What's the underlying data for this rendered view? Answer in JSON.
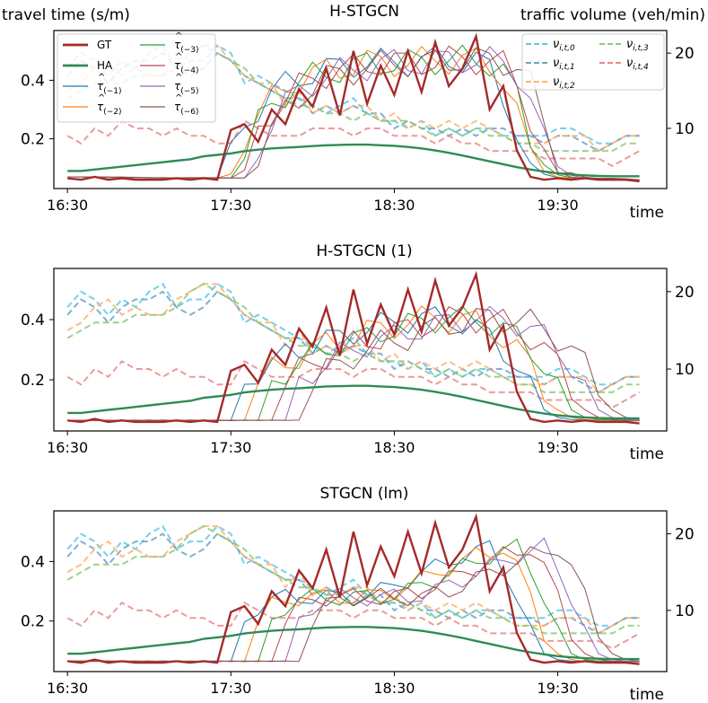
{
  "figure": {
    "left_axis_label": "travel time (s/m)",
    "right_axis_label": "traffic volume (veh/min)",
    "x_axis_label": "time"
  },
  "legend": {
    "travel": [
      {
        "key": "GT",
        "label": "GT",
        "sub": "",
        "hat": false,
        "color": "#a52a2a",
        "width": 2.4
      },
      {
        "key": "HA",
        "label": "HA",
        "sub": "",
        "hat": false,
        "color": "#2e8b57",
        "width": 2.4
      },
      {
        "key": "p1",
        "label": "τ",
        "sub": "(−1)",
        "hat": true,
        "color": "#1f77b4",
        "width": 1
      },
      {
        "key": "p2",
        "label": "τ",
        "sub": "(−2)",
        "hat": true,
        "color": "#ff7f0e",
        "width": 1
      },
      {
        "key": "p3",
        "label": "τ",
        "sub": "(−3)",
        "hat": true,
        "color": "#2ca02c",
        "width": 1
      },
      {
        "key": "p4",
        "label": "τ",
        "sub": "(−4)",
        "hat": true,
        "color": "#b5484d",
        "width": 1
      },
      {
        "key": "p5",
        "label": "τ",
        "sub": "(−5)",
        "hat": true,
        "color": "#9467bd",
        "width": 1
      },
      {
        "key": "p6",
        "label": "τ",
        "sub": "(−6)",
        "hat": true,
        "color": "#8c564b",
        "width": 1
      }
    ],
    "volume": [
      {
        "key": "v0",
        "label": "ν",
        "sub": "i,t,0",
        "color": "#5bc8e8"
      },
      {
        "key": "v1",
        "label": "ν",
        "sub": "i,t,1",
        "color": "#6aa3c8"
      },
      {
        "key": "v2",
        "label": "ν",
        "sub": "i,t,2",
        "color": "#ffb36b"
      },
      {
        "key": "v3",
        "label": "ν",
        "sub": "i,t,3",
        "color": "#8cc97a"
      },
      {
        "key": "v4",
        "label": "ν",
        "sub": "i,t,4",
        "color": "#e88a8a"
      }
    ]
  },
  "chart_data": [
    {
      "type": "line",
      "title": "H-STGCN",
      "xlabel": "time",
      "ylabel_left": "travel time (s/m)",
      "ylabel_right": "traffic volume (veh/min)",
      "x_ticks": [
        "16:30",
        "17:30",
        "18:30",
        "19:30"
      ],
      "x_tick_index": [
        0,
        12,
        24,
        36
      ],
      "xlim": [
        -1,
        44
      ],
      "ylim_left": [
        0.03,
        0.57
      ],
      "y_ticks_left": [
        0.2,
        0.4
      ],
      "ylim_right": [
        2,
        23
      ],
      "y_ticks_right": [
        10,
        20
      ],
      "gt": [
        0.065,
        0.06,
        0.07,
        0.06,
        0.065,
        0.06,
        0.06,
        0.06,
        0.065,
        0.06,
        0.065,
        0.06,
        0.23,
        0.25,
        0.19,
        0.3,
        0.25,
        0.37,
        0.31,
        0.44,
        0.28,
        0.5,
        0.32,
        0.45,
        0.35,
        0.5,
        0.36,
        0.53,
        0.38,
        0.44,
        0.55,
        0.3,
        0.38,
        0.16,
        0.07,
        0.06,
        0.065,
        0.06,
        0.065,
        0.06,
        0.06,
        0.06,
        0.055
      ],
      "ha": [
        0.09,
        0.09,
        0.095,
        0.1,
        0.105,
        0.11,
        0.115,
        0.12,
        0.125,
        0.13,
        0.14,
        0.145,
        0.15,
        0.158,
        0.163,
        0.167,
        0.17,
        0.172,
        0.175,
        0.178,
        0.179,
        0.18,
        0.18,
        0.178,
        0.176,
        0.172,
        0.167,
        0.16,
        0.152,
        0.143,
        0.133,
        0.123,
        0.113,
        0.103,
        0.095,
        0.088,
        0.082,
        0.078,
        0.075,
        0.073,
        0.072,
        0.072,
        0.072
      ],
      "pred": {
        "base": [
          0.07,
          0.068,
          0.07,
          0.066,
          0.068,
          0.066,
          0.066,
          0.066,
          0.068,
          0.066,
          0.066,
          0.066,
          0.2,
          0.28,
          0.33,
          0.37,
          0.4,
          0.42,
          0.43,
          0.44,
          0.45,
          0.46,
          0.46,
          0.46,
          0.46,
          0.465,
          0.47,
          0.47,
          0.47,
          0.465,
          0.46,
          0.42,
          0.3,
          0.15,
          0.09,
          0.07,
          0.065,
          0.065,
          0.065,
          0.06,
          0.06,
          0.06,
          0.06
        ],
        "shift": 0.45,
        "amp": 0.05
      },
      "volume": [
        [
          18,
          20,
          19,
          17,
          19,
          18,
          20,
          21,
          18,
          19,
          19,
          21,
          20,
          16,
          17,
          16,
          15,
          14,
          13,
          12,
          13,
          14,
          12,
          11,
          11,
          10,
          11,
          9,
          10,
          9,
          10,
          10,
          9,
          9,
          9,
          9,
          10,
          10,
          9,
          8,
          8,
          9,
          9
        ],
        [
          17,
          19,
          18,
          16,
          18,
          19,
          19,
          20,
          18,
          17,
          18,
          20,
          19,
          17,
          16,
          15,
          14,
          14,
          12,
          13,
          12,
          13,
          12,
          12,
          10,
          11,
          10,
          10,
          9,
          10,
          9,
          10,
          10,
          9,
          9,
          8,
          9,
          9,
          8,
          7,
          8,
          9,
          9
        ],
        [
          15,
          16,
          18,
          19,
          17,
          18,
          17,
          17,
          19,
          20,
          21,
          21,
          19,
          17,
          16,
          16,
          13,
          15,
          12,
          13,
          12,
          13,
          13,
          11,
          12,
          10,
          11,
          10,
          11,
          10,
          11,
          10,
          9,
          8,
          8,
          8,
          9,
          9,
          9,
          7,
          8,
          9,
          9
        ],
        [
          14,
          15,
          16,
          16,
          16,
          17,
          17,
          17,
          18,
          20,
          21,
          20,
          19,
          18,
          16,
          15,
          14,
          13,
          13,
          12,
          12,
          11,
          12,
          11,
          11,
          11,
          10,
          9,
          10,
          9,
          10,
          9,
          9,
          8,
          8,
          7,
          7,
          7,
          7,
          7,
          7,
          8,
          8
        ],
        [
          9,
          8,
          10,
          9,
          11,
          10,
          10,
          9,
          10,
          9,
          9,
          8,
          8,
          11,
          10,
          9,
          9,
          9,
          10,
          10,
          10,
          9,
          10,
          10,
          9,
          9,
          9,
          8,
          9,
          8,
          8,
          7,
          7,
          7,
          7,
          6,
          6,
          6,
          6,
          6,
          5,
          6,
          7
        ]
      ]
    },
    {
      "type": "line",
      "title": "H-STGCN (1)",
      "xlabel": "time",
      "ylabel_left": "",
      "ylabel_right": "",
      "x_ticks": [
        "16:30",
        "17:30",
        "18:30",
        "19:30"
      ],
      "x_tick_index": [
        0,
        12,
        24,
        36
      ],
      "xlim": [
        -1,
        44
      ],
      "ylim_left": [
        0.03,
        0.57
      ],
      "y_ticks_left": [
        0.2,
        0.4
      ],
      "ylim_right": [
        2,
        23
      ],
      "y_ticks_right": [
        10,
        20
      ],
      "gt": [
        0.065,
        0.06,
        0.07,
        0.06,
        0.065,
        0.06,
        0.06,
        0.06,
        0.065,
        0.06,
        0.065,
        0.06,
        0.23,
        0.25,
        0.19,
        0.3,
        0.25,
        0.37,
        0.31,
        0.44,
        0.28,
        0.5,
        0.32,
        0.45,
        0.35,
        0.5,
        0.36,
        0.53,
        0.38,
        0.44,
        0.55,
        0.3,
        0.38,
        0.16,
        0.07,
        0.06,
        0.065,
        0.06,
        0.065,
        0.06,
        0.06,
        0.06,
        0.055
      ],
      "ha": [
        0.09,
        0.09,
        0.095,
        0.1,
        0.105,
        0.11,
        0.115,
        0.12,
        0.125,
        0.13,
        0.14,
        0.145,
        0.15,
        0.158,
        0.163,
        0.167,
        0.17,
        0.172,
        0.175,
        0.178,
        0.179,
        0.18,
        0.18,
        0.178,
        0.176,
        0.172,
        0.167,
        0.16,
        0.152,
        0.143,
        0.133,
        0.123,
        0.113,
        0.103,
        0.095,
        0.088,
        0.082,
        0.078,
        0.075,
        0.073,
        0.072,
        0.072,
        0.072
      ],
      "pred": {
        "base": [
          0.065,
          0.066,
          0.064,
          0.066,
          0.065,
          0.066,
          0.064,
          0.066,
          0.065,
          0.066,
          0.065,
          0.066,
          0.19,
          0.23,
          0.25,
          0.28,
          0.3,
          0.32,
          0.33,
          0.34,
          0.36,
          0.37,
          0.38,
          0.39,
          0.4,
          0.41,
          0.4,
          0.4,
          0.39,
          0.37,
          0.34,
          0.3,
          0.25,
          0.17,
          0.1,
          0.075,
          0.068,
          0.066,
          0.065,
          0.065,
          0.064,
          0.064,
          0.064
        ],
        "shift": 1.0,
        "amp": 0.045
      },
      "volume": [
        [
          18,
          20,
          19,
          17,
          19,
          18,
          20,
          21,
          18,
          19,
          19,
          21,
          20,
          16,
          17,
          16,
          15,
          14,
          13,
          12,
          13,
          14,
          12,
          11,
          11,
          10,
          11,
          9,
          10,
          9,
          10,
          10,
          9,
          9,
          9,
          9,
          10,
          10,
          9,
          8,
          8,
          9,
          9
        ],
        [
          17,
          19,
          18,
          16,
          18,
          19,
          19,
          20,
          18,
          17,
          18,
          20,
          19,
          17,
          16,
          15,
          14,
          14,
          12,
          13,
          12,
          13,
          12,
          12,
          10,
          11,
          10,
          10,
          9,
          10,
          9,
          10,
          10,
          9,
          9,
          8,
          9,
          9,
          8,
          7,
          8,
          9,
          9
        ],
        [
          15,
          16,
          18,
          19,
          17,
          18,
          17,
          17,
          19,
          20,
          21,
          21,
          19,
          17,
          16,
          16,
          13,
          15,
          12,
          13,
          12,
          13,
          13,
          11,
          12,
          10,
          11,
          10,
          11,
          10,
          11,
          10,
          9,
          8,
          8,
          8,
          9,
          9,
          9,
          7,
          8,
          9,
          9
        ],
        [
          14,
          15,
          16,
          16,
          16,
          17,
          17,
          17,
          18,
          20,
          21,
          20,
          19,
          18,
          16,
          15,
          14,
          13,
          13,
          12,
          12,
          11,
          12,
          11,
          11,
          11,
          10,
          9,
          10,
          9,
          10,
          9,
          9,
          8,
          8,
          7,
          7,
          7,
          7,
          7,
          7,
          8,
          8
        ],
        [
          9,
          8,
          10,
          9,
          11,
          10,
          10,
          9,
          10,
          9,
          9,
          8,
          8,
          11,
          10,
          9,
          9,
          9,
          10,
          10,
          10,
          9,
          10,
          10,
          9,
          9,
          9,
          8,
          9,
          8,
          8,
          7,
          7,
          7,
          7,
          6,
          6,
          6,
          6,
          6,
          5,
          6,
          7
        ]
      ]
    },
    {
      "type": "line",
      "title": "STGCN (lm)",
      "xlabel": "time",
      "ylabel_left": "",
      "ylabel_right": "",
      "x_ticks": [
        "16:30",
        "17:30",
        "18:30",
        "19:30"
      ],
      "x_tick_index": [
        0,
        12,
        24,
        36
      ],
      "xlim": [
        -1,
        44
      ],
      "ylim_left": [
        0.03,
        0.57
      ],
      "y_ticks_left": [
        0.2,
        0.4
      ],
      "ylim_right": [
        2,
        23
      ],
      "y_ticks_right": [
        10,
        20
      ],
      "gt": [
        0.065,
        0.06,
        0.07,
        0.06,
        0.065,
        0.06,
        0.06,
        0.06,
        0.065,
        0.06,
        0.065,
        0.06,
        0.23,
        0.25,
        0.19,
        0.3,
        0.25,
        0.37,
        0.31,
        0.44,
        0.28,
        0.5,
        0.32,
        0.45,
        0.35,
        0.5,
        0.36,
        0.53,
        0.38,
        0.44,
        0.55,
        0.3,
        0.38,
        0.16,
        0.07,
        0.06,
        0.065,
        0.06,
        0.065,
        0.06,
        0.06,
        0.06,
        0.055
      ],
      "ha": [
        0.09,
        0.09,
        0.095,
        0.1,
        0.105,
        0.11,
        0.115,
        0.12,
        0.125,
        0.13,
        0.14,
        0.145,
        0.15,
        0.158,
        0.163,
        0.167,
        0.17,
        0.172,
        0.175,
        0.178,
        0.179,
        0.18,
        0.18,
        0.178,
        0.176,
        0.172,
        0.167,
        0.16,
        0.152,
        0.143,
        0.133,
        0.123,
        0.113,
        0.103,
        0.095,
        0.088,
        0.082,
        0.078,
        0.075,
        0.073,
        0.072,
        0.072,
        0.072
      ],
      "pred": {
        "base": [
          0.065,
          0.064,
          0.066,
          0.064,
          0.065,
          0.064,
          0.066,
          0.064,
          0.065,
          0.064,
          0.066,
          0.064,
          0.2,
          0.25,
          0.27,
          0.28,
          0.28,
          0.28,
          0.28,
          0.28,
          0.28,
          0.29,
          0.3,
          0.32,
          0.34,
          0.36,
          0.38,
          0.4,
          0.42,
          0.43,
          0.45,
          0.38,
          0.28,
          0.16,
          0.09,
          0.07,
          0.065,
          0.064,
          0.064,
          0.063,
          0.063,
          0.063,
          0.063
        ],
        "shift": 1.0,
        "amp": 0.03
      },
      "volume": [
        [
          18,
          20,
          19,
          17,
          19,
          18,
          20,
          21,
          18,
          19,
          19,
          21,
          20,
          16,
          17,
          16,
          15,
          14,
          13,
          12,
          13,
          14,
          12,
          11,
          11,
          10,
          11,
          9,
          10,
          9,
          10,
          10,
          9,
          9,
          9,
          9,
          10,
          10,
          9,
          8,
          8,
          9,
          9
        ],
        [
          17,
          19,
          18,
          16,
          18,
          19,
          19,
          20,
          18,
          17,
          18,
          20,
          19,
          17,
          16,
          15,
          14,
          14,
          12,
          13,
          12,
          13,
          12,
          12,
          10,
          11,
          10,
          10,
          9,
          10,
          9,
          10,
          10,
          9,
          9,
          8,
          9,
          9,
          8,
          7,
          8,
          9,
          9
        ],
        [
          15,
          16,
          18,
          19,
          17,
          18,
          17,
          17,
          19,
          20,
          21,
          21,
          19,
          17,
          16,
          16,
          13,
          15,
          12,
          13,
          12,
          13,
          13,
          11,
          12,
          10,
          11,
          10,
          11,
          10,
          11,
          10,
          9,
          8,
          8,
          8,
          9,
          9,
          9,
          7,
          8,
          9,
          9
        ],
        [
          14,
          15,
          16,
          16,
          16,
          17,
          17,
          17,
          18,
          20,
          21,
          20,
          19,
          18,
          16,
          15,
          14,
          13,
          13,
          12,
          12,
          11,
          12,
          11,
          11,
          11,
          10,
          9,
          10,
          9,
          10,
          9,
          9,
          8,
          8,
          7,
          7,
          7,
          7,
          7,
          7,
          8,
          8
        ],
        [
          9,
          8,
          10,
          9,
          11,
          10,
          10,
          9,
          10,
          9,
          9,
          8,
          8,
          11,
          10,
          9,
          9,
          9,
          10,
          10,
          10,
          9,
          10,
          10,
          9,
          9,
          9,
          8,
          9,
          8,
          8,
          7,
          7,
          7,
          7,
          6,
          6,
          6,
          6,
          6,
          5,
          6,
          7
        ]
      ]
    }
  ]
}
